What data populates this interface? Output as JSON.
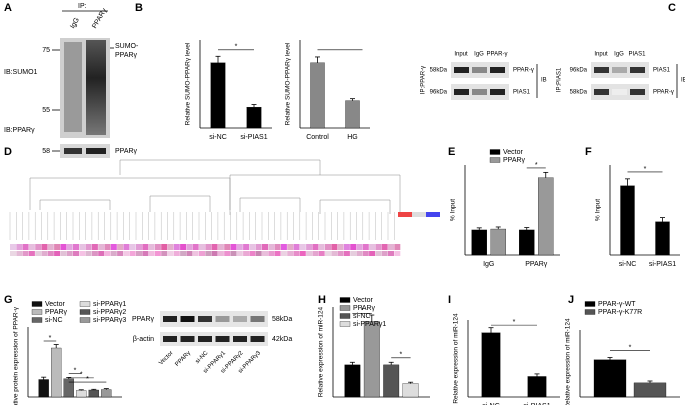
{
  "chart_data": [
    {
      "panel": "B",
      "type": "bar",
      "ylabel": "Relative SUMO-PPARγ level",
      "categories": [
        "si-NC",
        "si-PIAS1"
      ],
      "values": [
        1.0,
        0.32
      ],
      "errors": [
        0.1,
        0.04
      ],
      "color": "#000000",
      "ylim": [
        0,
        1.35
      ],
      "significance": [
        "*"
      ]
    },
    {
      "type": "bar",
      "ylabel": "Relative SUMO-PPARγ level",
      "categories": [
        "Control",
        "HG"
      ],
      "values": [
        1.0,
        0.42
      ],
      "errors": [
        0.09,
        0.03
      ],
      "color": "#888888",
      "ylim": [
        0,
        1.35
      ]
    },
    {
      "panel": "E",
      "type": "bar",
      "ylabel": "% Input",
      "categories": [
        "IgG",
        "PPARγ"
      ],
      "series": [
        {
          "name": "Vector",
          "color": "#000000",
          "values": [
            0.85,
            0.85
          ],
          "errors": [
            0.07,
            0.08
          ]
        },
        {
          "name": "PPARγ",
          "color": "#999999",
          "values": [
            0.88,
            2.62
          ],
          "errors": [
            0.07,
            0.18
          ]
        }
      ],
      "ylim": [
        0,
        3.05
      ],
      "significance": [
        "*"
      ]
    },
    {
      "panel": "F",
      "type": "bar",
      "ylabel": "% Input",
      "categories": [
        "si-NC",
        "si-PIAS1"
      ],
      "values": [
        1.0,
        0.48
      ],
      "errors": [
        0.1,
        0.06
      ],
      "color": "#000000",
      "ylim": [
        0,
        1.3
      ],
      "significance": [
        "*"
      ]
    },
    {
      "panel": "G",
      "type": "bar",
      "ylabel": "Relative protein expression of PPAR-γ",
      "categories": [
        null
      ],
      "series": [
        {
          "name": "Vector",
          "color": "#111111",
          "values": [
            0.75
          ],
          "errors": [
            0.1
          ]
        },
        {
          "name": "PPARγ",
          "color": "#bbbbbb",
          "values": [
            2.1
          ],
          "errors": [
            0.15
          ]
        },
        {
          "name": "si-NC",
          "color": "#666666",
          "values": [
            0.78
          ],
          "errors": [
            0.06
          ]
        },
        {
          "name": "si-PPARγ1",
          "color": "#dddddd",
          "values": [
            0.28
          ],
          "errors": [
            0.03
          ]
        },
        {
          "name": "si-PPARγ2",
          "color": "#555555",
          "values": [
            0.3
          ],
          "errors": [
            0.03
          ]
        },
        {
          "name": "si-PPARγ3",
          "color": "#999999",
          "values": [
            0.32
          ],
          "errors": [
            0.04
          ]
        }
      ],
      "ylim": [
        0,
        3
      ],
      "significance": [
        "*",
        "*",
        "*",
        "*"
      ]
    },
    {
      "panel": "H",
      "type": "bar",
      "ylabel": "Relative expression of miR-124",
      "categories": [
        null
      ],
      "series": [
        {
          "name": "Vector",
          "color": "#000000",
          "values": [
            1.0
          ],
          "errors": [
            0.08
          ]
        },
        {
          "name": "PPARγ",
          "color": "#999999",
          "values": [
            2.35
          ],
          "errors": [
            0.2
          ]
        },
        {
          "name": "si-NC",
          "color": "#555555",
          "values": [
            1.0
          ],
          "errors": [
            0.08
          ]
        },
        {
          "name": "si-PPARγ1",
          "color": "#dddddd",
          "values": [
            0.42
          ],
          "errors": [
            0.04
          ]
        }
      ],
      "ylim": [
        0,
        2.8
      ],
      "significance": [
        "*",
        "*"
      ]
    },
    {
      "panel": "I",
      "type": "bar",
      "ylabel": "Relative expression of miR-124",
      "categories": [
        "si-NC",
        "si-PIAS1"
      ],
      "values": [
        1.0,
        0.32
      ],
      "errors": [
        0.08,
        0.04
      ],
      "color": "#000000",
      "ylim": [
        0,
        1.2
      ],
      "significance": [
        "*"
      ]
    },
    {
      "panel": "J",
      "type": "bar",
      "ylabel": "Relative expression of miR-124",
      "categories": [
        null
      ],
      "series": [
        {
          "name": "PPAR-γ-WT",
          "color": "#000000",
          "values": [
            1.0
          ],
          "errors": [
            0.06
          ]
        },
        {
          "name": "PPAR-γ-K77R",
          "color": "#555555",
          "values": [
            0.38
          ],
          "errors": [
            0.05
          ]
        }
      ],
      "ylim": [
        0,
        1.8
      ],
      "significance": [
        "*"
      ]
    }
  ],
  "blots": {
    "A": {
      "panel": "A",
      "ip": "IP:",
      "lanes": [
        "IgG",
        "PPARγ"
      ],
      "markers": [
        "75",
        "55",
        "58"
      ],
      "top_ib": "IB:SUMO1",
      "bottom_ib": "IB:PPARγ",
      "sumo": [
        "SUMO-",
        "PPARγ"
      ],
      "band": "PPARγ"
    },
    "C": {
      "panel": "C",
      "left": {
        "lanes": [
          "Input",
          "IgG",
          "PPAR-γ"
        ],
        "sizes": [
          "58kDa",
          "96kDa"
        ],
        "ip": "IP:PPAR-γ",
        "bands": [
          "PPAR-γ",
          "PIAS1"
        ],
        "ib": "IB"
      },
      "right": {
        "lanes": [
          "Input",
          "IgG",
          "PIAS1"
        ],
        "sizes": [
          "96kDa",
          "58kDa"
        ],
        "ip": "IP:PIAS1",
        "bands": [
          "PIAS1",
          "PPAR-γ"
        ],
        "ib": "IB"
      }
    },
    "D": {
      "panel": "D"
    },
    "G": {
      "bands": [
        "PPARγ",
        "β-actin"
      ],
      "sizes": [
        "58kDa",
        "42kDa"
      ],
      "lanes": [
        "Vector",
        "PPARγ",
        "si-NC",
        "si-PPARγ1",
        "si-PPARγ2",
        "si-PPARγ3"
      ]
    }
  }
}
